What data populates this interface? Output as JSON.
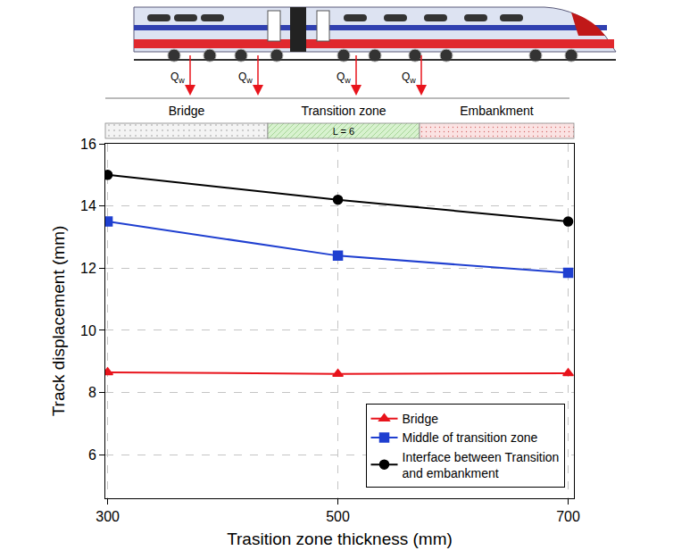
{
  "chart_data": {
    "type": "line",
    "x_label": "Trasition zone thickness (mm)",
    "y_label": "Track displacement (mm)",
    "x": [
      300,
      500,
      700
    ],
    "series": [
      {
        "name": "Bridge",
        "color": "#e8141c",
        "marker": "triangle-up",
        "values": [
          8.65,
          8.6,
          8.62
        ]
      },
      {
        "name": "Middle of transition zone",
        "color": "#1f3fd0",
        "marker": "square",
        "values": [
          13.5,
          12.4,
          11.85
        ]
      },
      {
        "name": "Interface between Transition and embankment",
        "color": "#000000",
        "marker": "circle",
        "values": [
          15.0,
          14.2,
          13.5
        ]
      }
    ],
    "xlim": [
      298,
      705
    ],
    "ylim": [
      4.6,
      16
    ],
    "xticks": [
      300,
      500,
      700
    ],
    "yticks": [
      6,
      8,
      10,
      12,
      14,
      16
    ],
    "grid": true,
    "legend": "lower right"
  },
  "illustration": {
    "load_symbol": "Q",
    "load_subscript": "w",
    "load_count": 4,
    "zones": [
      "Bridge",
      "Transition zone",
      "Embankment"
    ],
    "zone_note": "L = 6"
  }
}
